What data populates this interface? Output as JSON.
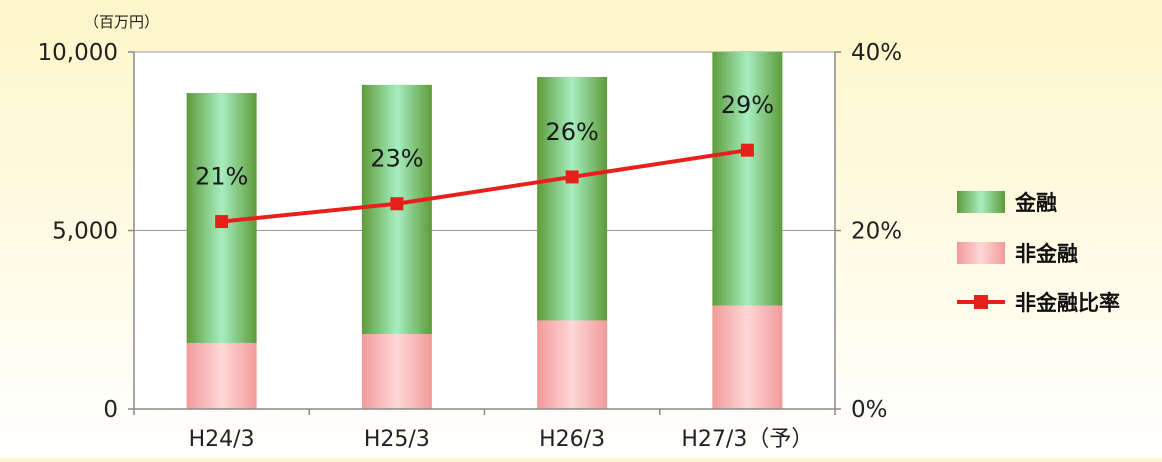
{
  "chart_data": {
    "type": "bar",
    "stacked": true,
    "y_unit_label": "（百万円）",
    "categories": [
      "H24/3",
      "H25/3",
      "H26/3",
      "H27/3（予）"
    ],
    "series": [
      {
        "name": "非金融",
        "kind": "bar",
        "axis": "left",
        "color": "#f7a9a9",
        "values": [
          1850,
          2100,
          2480,
          2900
        ]
      },
      {
        "name": "金融",
        "kind": "bar",
        "axis": "left",
        "color": "#4fbf56",
        "values": [
          7000,
          6980,
          6820,
          7100
        ]
      },
      {
        "name": "非金融比率",
        "kind": "line",
        "axis": "right",
        "color": "#e8201c",
        "values": [
          21,
          23,
          26,
          29
        ],
        "labels": [
          "21%",
          "23%",
          "26%",
          "29%"
        ]
      }
    ],
    "left_axis": {
      "ylim": [
        0,
        10000
      ],
      "ticks": [
        0,
        5000,
        10000
      ],
      "tick_labels": [
        "0",
        "5,000",
        "10,000"
      ]
    },
    "right_axis": {
      "ylim": [
        0,
        40
      ],
      "ticks": [
        0,
        20,
        40
      ],
      "tick_labels": [
        "0%",
        "20%",
        "40%"
      ]
    },
    "grid": true,
    "legend_position": "right",
    "legend": [
      {
        "label": "金融",
        "marker": "bar",
        "color": "#4fbf56"
      },
      {
        "label": "非金融",
        "marker": "bar",
        "color": "#f7a9a9"
      },
      {
        "label": "非金融比率",
        "marker": "line",
        "color": "#e8201c"
      }
    ]
  }
}
